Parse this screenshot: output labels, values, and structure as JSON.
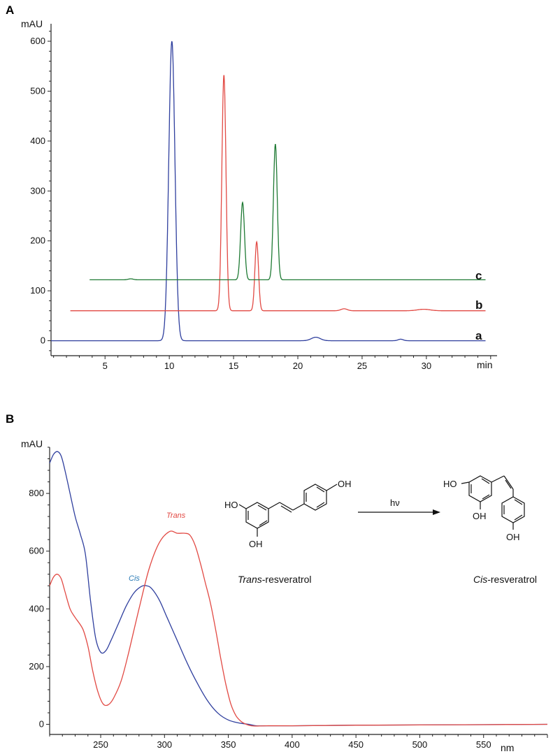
{
  "colors": {
    "blue": "#2f3f9e",
    "red": "#e24a44",
    "green": "#1f7a34",
    "axis": "#222222",
    "cis_label": "#2a7ab5"
  },
  "chart_data": [
    {
      "panel": "A",
      "type": "line",
      "ylabel": "mAU",
      "xlabel": "min",
      "xlim": [
        0.8,
        35.5
      ],
      "ylim": [
        -30,
        635
      ],
      "xticks": [
        5,
        10,
        15,
        20,
        25,
        30
      ],
      "yticks": [
        0,
        100,
        200,
        300,
        400,
        500,
        600
      ],
      "series": [
        {
          "name": "a",
          "color": "blue",
          "baseline": 0,
          "x_range": [
            0.8,
            34.6
          ],
          "peaks": [
            {
              "rt": 10.2,
              "height": 600,
              "sigma": 0.24
            },
            {
              "rt": 21.4,
              "height": 7,
              "sigma": 0.35
            },
            {
              "rt": 28.0,
              "height": 3,
              "sigma": 0.2
            }
          ]
        },
        {
          "name": "b",
          "color": "red",
          "baseline": 60,
          "x_range": [
            2.3,
            34.6
          ],
          "peaks": [
            {
              "rt": 14.25,
              "height": 472,
              "sigma": 0.16
            },
            {
              "rt": 16.8,
              "height": 138,
              "sigma": 0.14
            },
            {
              "rt": 23.6,
              "height": 4,
              "sigma": 0.25
            },
            {
              "rt": 29.8,
              "height": 3,
              "sigma": 0.5
            }
          ]
        },
        {
          "name": "c",
          "color": "green",
          "baseline": 122,
          "x_range": [
            3.8,
            34.6
          ],
          "peaks": [
            {
              "rt": 15.7,
              "height": 155,
              "sigma": 0.15
            },
            {
              "rt": 18.25,
              "height": 272,
              "sigma": 0.15
            },
            {
              "rt": 7.0,
              "height": 2,
              "sigma": 0.2
            }
          ]
        }
      ]
    },
    {
      "panel": "B",
      "type": "line",
      "ylabel": "mAU",
      "xlabel": "nm",
      "xlim": [
        210,
        600
      ],
      "ylim": [
        -35,
        960
      ],
      "xticks": [
        250,
        300,
        350,
        400,
        450,
        500,
        550
      ],
      "yticks": [
        0,
        200,
        400,
        600,
        800
      ],
      "series": [
        {
          "name": "Cis",
          "color": "blue",
          "x": [
            210,
            213,
            216,
            219,
            222,
            226,
            230,
            234,
            238,
            242,
            246,
            250,
            254,
            258,
            264,
            270,
            276,
            282,
            286,
            290,
            296,
            302,
            310,
            318,
            326,
            334,
            342,
            350,
            358,
            366,
            372,
            380,
            400,
            450,
            500,
            550,
            600
          ],
          "y": [
            905,
            935,
            945,
            930,
            880,
            800,
            720,
            660,
            590,
            430,
            300,
            250,
            255,
            290,
            350,
            410,
            455,
            478,
            480,
            470,
            430,
            370,
            290,
            210,
            140,
            80,
            38,
            15,
            5,
            0,
            -5,
            -5,
            -5,
            -3,
            -2,
            -1,
            0
          ]
        },
        {
          "name": "Trans",
          "color": "red",
          "x": [
            210,
            213,
            216,
            219,
            222,
            226,
            230,
            236,
            240,
            244,
            248,
            252,
            256,
            260,
            266,
            272,
            280,
            288,
            296,
            304,
            310,
            316,
            320,
            324,
            328,
            332,
            336,
            340,
            344,
            348,
            352,
            356,
            360,
            364,
            368,
            372,
            380,
            400,
            450,
            500,
            550,
            600
          ],
          "y": [
            480,
            510,
            520,
            505,
            460,
            400,
            370,
            330,
            270,
            180,
            110,
            70,
            68,
            90,
            150,
            250,
            400,
            540,
            630,
            668,
            662,
            662,
            655,
            620,
            560,
            490,
            420,
            330,
            230,
            140,
            70,
            30,
            10,
            0,
            -5,
            -6,
            -5,
            -5,
            -3,
            -2,
            -1,
            0
          ]
        }
      ]
    }
  ],
  "panelA": {
    "label": "A",
    "y_unit": "mAU",
    "x_unit": "min",
    "trace_labels": [
      "c",
      "b",
      "a"
    ]
  },
  "panelB": {
    "label": "B",
    "y_unit": "mAU",
    "x_unit": "nm",
    "cis_label": "Cis",
    "trans_label": "Trans",
    "scheme": {
      "trans_oh_left": "HO",
      "trans_oh_bottom": "OH",
      "trans_oh_right": "OH",
      "trans_name_italic": "Trans",
      "trans_name_rest": "-resveratrol",
      "arrow_label": "hν",
      "cis_oh_left": "HO",
      "cis_oh_bottom": "OH",
      "cis_oh_ring2": "OH",
      "cis_name_italic": "Cis",
      "cis_name_rest": "-resveratrol"
    }
  }
}
